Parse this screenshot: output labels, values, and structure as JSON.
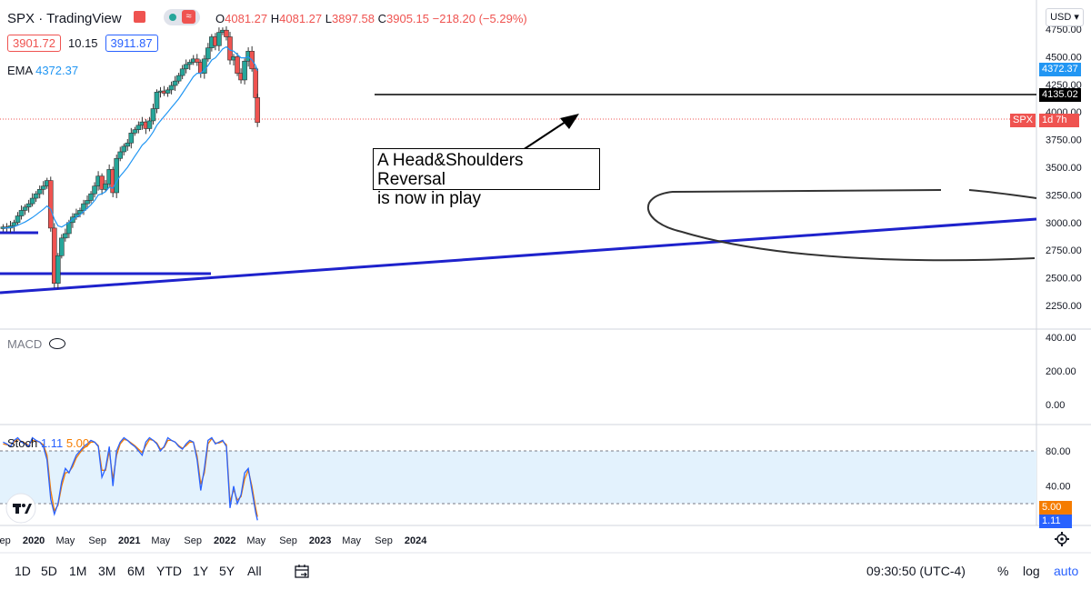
{
  "header": {
    "symbol": "SPX",
    "separator": "·",
    "source": "TradingView",
    "ohlc": {
      "o_label": "O",
      "o": "4081.27",
      "h_label": "H",
      "h": "4081.27",
      "l_label": "L",
      "l": "3897.58",
      "c_label": "C",
      "c": "3905.15",
      "chg": "−218.20 (−5.29%)"
    },
    "bid": "3901.72",
    "spread": "10.15",
    "ask": "3911.87",
    "ema_label": "EMA",
    "ema_value": "4372.37",
    "currency": "USD"
  },
  "annotation": {
    "line1": "A Head&Shoulders Reversal",
    "line2": "is now in play"
  },
  "price_tags": {
    "ema": "4372.37",
    "hline": "4135.02",
    "symbol": "SPX",
    "countdown": "1d 7h",
    "stoch_d": "5.00",
    "stoch_k": "1.11"
  },
  "macd": {
    "label": "MACD"
  },
  "stoch": {
    "label": "Stoch",
    "k": "1.11",
    "d": "5.00"
  },
  "timeframes": [
    "1D",
    "5D",
    "1M",
    "3M",
    "6M",
    "YTD",
    "1Y",
    "5Y",
    "All"
  ],
  "footer": {
    "time": "09:30:50 (UTC-4)",
    "percent": "%",
    "log": "log",
    "auto": "auto"
  },
  "colors": {
    "up": "#26a69a",
    "down": "#ef5350",
    "ema": "#2196f3",
    "stoch_k": "#2962ff",
    "stoch_d": "#f57c00",
    "trendline": "#1e22cc",
    "hline": "#000000",
    "band": "#e3f2fd"
  },
  "chart_data": [
    {
      "type": "candlestick",
      "title": "SPX · TradingView",
      "interval": "1W",
      "x_labels": [
        "Sep",
        "2020",
        "May",
        "Sep",
        "2021",
        "May",
        "Sep",
        "2022",
        "May",
        "Sep",
        "2023",
        "May",
        "Sep",
        "2024"
      ],
      "y_ticks": [
        4750,
        4500,
        4250,
        4000,
        3750,
        3500,
        3250,
        3000,
        2750,
        2500,
        2250
      ],
      "ylim": [
        2150,
        4850
      ],
      "x": [
        "2019-09-06",
        "2019-09-20",
        "2019-10-04",
        "2019-10-18",
        "2019-11-01",
        "2019-11-15",
        "2019-11-29",
        "2019-12-13",
        "2019-12-27",
        "2020-01-10",
        "2020-01-24",
        "2020-02-07",
        "2020-02-21",
        "2020-03-06",
        "2020-03-20",
        "2020-04-03",
        "2020-04-17",
        "2020-05-01",
        "2020-05-15",
        "2020-05-29",
        "2020-06-12",
        "2020-06-26",
        "2020-07-10",
        "2020-07-24",
        "2020-08-07",
        "2020-08-21",
        "2020-09-04",
        "2020-09-18",
        "2020-10-02",
        "2020-10-16",
        "2020-10-30",
        "2020-11-13",
        "2020-11-27",
        "2020-12-11",
        "2020-12-25",
        "2021-01-08",
        "2021-01-22",
        "2021-02-05",
        "2021-02-19",
        "2021-03-05",
        "2021-03-19",
        "2021-04-02",
        "2021-04-16",
        "2021-04-30",
        "2021-05-14",
        "2021-05-28",
        "2021-06-11",
        "2021-06-25",
        "2021-07-09",
        "2021-07-23",
        "2021-08-06",
        "2021-08-20",
        "2021-09-03",
        "2021-09-17",
        "2021-10-01",
        "2021-10-15",
        "2021-10-29",
        "2021-11-12",
        "2021-11-26",
        "2021-12-10",
        "2021-12-24",
        "2022-01-07",
        "2022-01-21",
        "2022-02-04",
        "2022-02-18",
        "2022-03-04",
        "2022-03-18",
        "2022-04-01",
        "2022-04-15",
        "2022-04-29",
        "2022-05-06"
      ],
      "close": [
        2960,
        2950,
        2970,
        3000,
        3060,
        3110,
        3140,
        3170,
        3220,
        3260,
        3300,
        3330,
        3380,
        2950,
        2450,
        2700,
        2860,
        2900,
        3000,
        3050,
        3080,
        3110,
        3170,
        3200,
        3260,
        3330,
        3420,
        3300,
        3350,
        3480,
        3270,
        3580,
        3640,
        3690,
        3720,
        3810,
        3840,
        3880,
        3910,
        3850,
        3920,
        4030,
        4180,
        4190,
        4170,
        4200,
        4240,
        4280,
        4330,
        4390,
        4430,
        4450,
        4480,
        4450,
        4350,
        4480,
        4580,
        4680,
        4600,
        4720,
        4740,
        4680,
        4470,
        4500,
        4350,
        4290,
        4460,
        4550,
        4390,
        4130,
        3905
      ],
      "ema": [
        2950,
        2952,
        2955,
        2962,
        2975,
        2990,
        3005,
        3025,
        3045,
        3070,
        3095,
        3120,
        3150,
        3120,
        3030,
        2970,
        2960,
        2980,
        3000,
        3030,
        3050,
        3070,
        3100,
        3130,
        3160,
        3200,
        3250,
        3260,
        3280,
        3320,
        3310,
        3370,
        3420,
        3460,
        3500,
        3550,
        3600,
        3650,
        3700,
        3730,
        3770,
        3820,
        3880,
        3920,
        3960,
        4000,
        4040,
        4080,
        4120,
        4170,
        4220,
        4270,
        4320,
        4350,
        4350,
        4380,
        4420,
        4470,
        4490,
        4530,
        4570,
        4590,
        4560,
        4550,
        4520,
        4490,
        4490,
        4500,
        4470,
        4420,
        4372.37
      ],
      "series": [
        {
          "name": "EMA",
          "value": 4372.37
        }
      ],
      "hlines": [
        4135.02
      ],
      "last_price": 3905.15
    },
    {
      "type": "line",
      "title": "MACD",
      "y_ticks": [
        400,
        200,
        0
      ],
      "ylim": [
        -80,
        480
      ],
      "series": []
    },
    {
      "type": "line",
      "title": "Stoch",
      "y_ticks": [
        80,
        40
      ],
      "ylim": [
        0,
        100
      ],
      "bands": [
        20,
        80
      ],
      "series": [
        {
          "name": "1.11",
          "values": [
            90,
            88,
            85,
            92,
            95,
            90,
            88,
            85,
            95,
            92,
            90,
            85,
            70,
            25,
            8,
            20,
            45,
            60,
            55,
            65,
            75,
            80,
            85,
            88,
            92,
            90,
            85,
            50,
            60,
            85,
            40,
            80,
            90,
            95,
            92,
            88,
            85,
            80,
            75,
            90,
            95,
            92,
            88,
            80,
            85,
            95,
            92,
            90,
            85,
            82,
            88,
            92,
            90,
            70,
            35,
            60,
            92,
            95,
            88,
            90,
            92,
            85,
            15,
            40,
            20,
            30,
            55,
            60,
            35,
            10,
            1.11
          ]
        },
        {
          "name": "5.00",
          "values": [
            88,
            87,
            86,
            90,
            93,
            91,
            89,
            86,
            92,
            91,
            90,
            87,
            75,
            35,
            12,
            18,
            40,
            55,
            56,
            62,
            72,
            78,
            83,
            86,
            90,
            90,
            86,
            58,
            58,
            80,
            48,
            75,
            88,
            93,
            92,
            89,
            86,
            82,
            78,
            86,
            93,
            92,
            89,
            82,
            84,
            92,
            92,
            90,
            86,
            83,
            86,
            90,
            90,
            74,
            42,
            55,
            88,
            94,
            89,
            89,
            91,
            87,
            22,
            36,
            24,
            28,
            48,
            58,
            40,
            15,
            5.0
          ]
        }
      ]
    }
  ]
}
